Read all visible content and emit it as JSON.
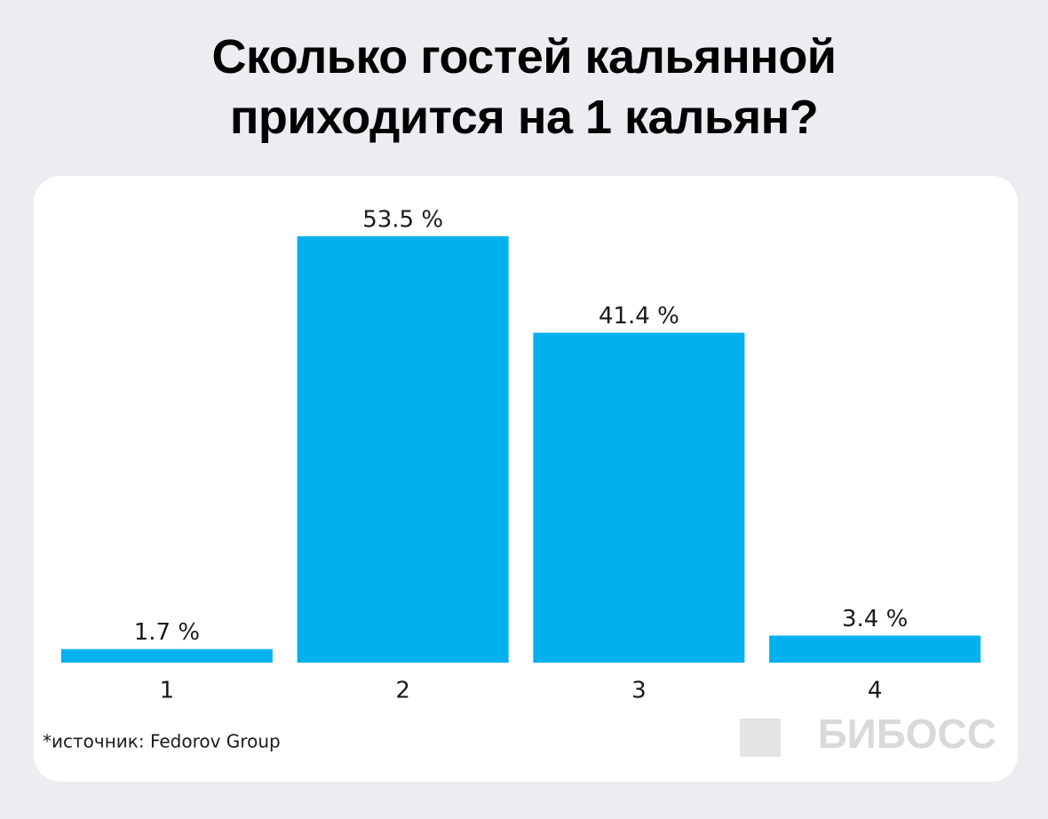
{
  "chart_data": {
    "type": "bar",
    "title": "Сколько гостей кальянной приходится на 1 кальян?",
    "categories": [
      "1",
      "2",
      "3",
      "4"
    ],
    "values": [
      1.7,
      53.5,
      41.4,
      3.4
    ],
    "value_labels": [
      "1.7 %",
      "53.5 %",
      "41.4 %",
      "3.4 %"
    ],
    "color": "#00b1ee",
    "source": "*источник: Fedorov Group",
    "logo": "БИБОСС"
  }
}
